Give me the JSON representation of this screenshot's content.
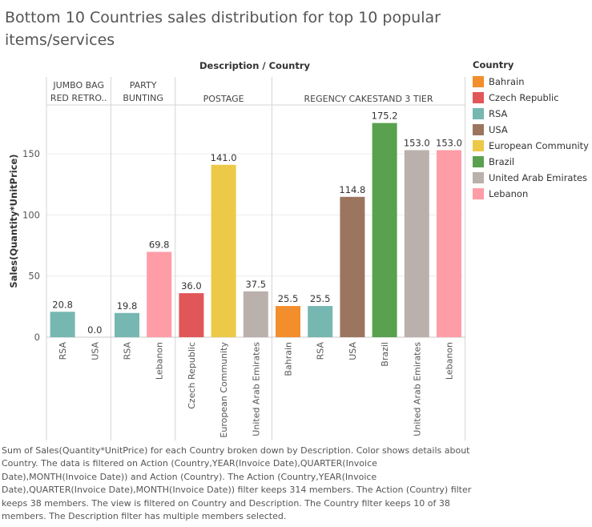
{
  "title": "Bottom 10 Countries sales distribution for top 10 popular items/services",
  "caption": "Sum of Sales(Quantity*UnitPrice) for each Country broken down by Description.  Color shows details about Country. The data is filtered on Action (Country,YEAR(Invoice Date),QUARTER(Invoice Date),MONTH(Invoice Date)) and Action (Country). The Action (Country,YEAR(Invoice Date),QUARTER(Invoice Date),MONTH(Invoice Date)) filter keeps 314 members. The Action (Country) filter keeps 38 members. The view is filtered on Country and Description. The Country filter keeps 10 of 38 members. The Description filter has multiple members selected.",
  "legend": {
    "title": "Country",
    "items": [
      {
        "label": "Bahrain",
        "color": "#f28e2b"
      },
      {
        "label": "Czech Republic",
        "color": "#e15759"
      },
      {
        "label": "RSA",
        "color": "#76b7b2"
      },
      {
        "label": "USA",
        "color": "#9c755f"
      },
      {
        "label": "European Community",
        "color": "#edc948"
      },
      {
        "label": "Brazil",
        "color": "#59a14f"
      },
      {
        "label": "United Arab Emirates",
        "color": "#bab0ac"
      },
      {
        "label": "Lebanon",
        "color": "#ff9da7"
      }
    ]
  },
  "chart_data": {
    "type": "bar",
    "header_title": "Description / Country",
    "ylabel": "Sales(Quantity*UnitPrice)",
    "ylim": [
      0,
      190
    ],
    "yticks": [
      0,
      50,
      100,
      150
    ],
    "grid": true,
    "legend_position": "right",
    "groups": [
      {
        "label_lines": [
          "JUMBO BAG",
          "RED RETRO.."
        ],
        "bars": [
          {
            "country": "RSA",
            "value": 20.8,
            "label": "20.8"
          },
          {
            "country": "USA",
            "value": 0.0,
            "label": "0.0"
          }
        ]
      },
      {
        "label_lines": [
          "PARTY",
          "BUNTING"
        ],
        "bars": [
          {
            "country": "RSA",
            "value": 19.8,
            "label": "19.8"
          },
          {
            "country": "Lebanon",
            "value": 69.8,
            "label": "69.8"
          }
        ]
      },
      {
        "label_lines": [
          "POSTAGE"
        ],
        "bars": [
          {
            "country": "Czech Republic",
            "value": 36.0,
            "label": "36.0"
          },
          {
            "country": "European Community",
            "value": 141.0,
            "label": "141.0"
          },
          {
            "country": "United Arab Emirates",
            "value": 37.5,
            "label": "37.5"
          }
        ]
      },
      {
        "label_lines": [
          "REGENCY CAKESTAND 3 TIER"
        ],
        "bars": [
          {
            "country": "Bahrain",
            "value": 25.5,
            "label": "25.5"
          },
          {
            "country": "RSA",
            "value": 25.5,
            "label": "25.5"
          },
          {
            "country": "USA",
            "value": 114.8,
            "label": "114.8"
          },
          {
            "country": "Brazil",
            "value": 175.2,
            "label": "175.2"
          },
          {
            "country": "United Arab Emirates",
            "value": 153.0,
            "label": "153.0"
          },
          {
            "country": "Lebanon",
            "value": 153.0,
            "label": "153.0"
          }
        ]
      }
    ]
  }
}
